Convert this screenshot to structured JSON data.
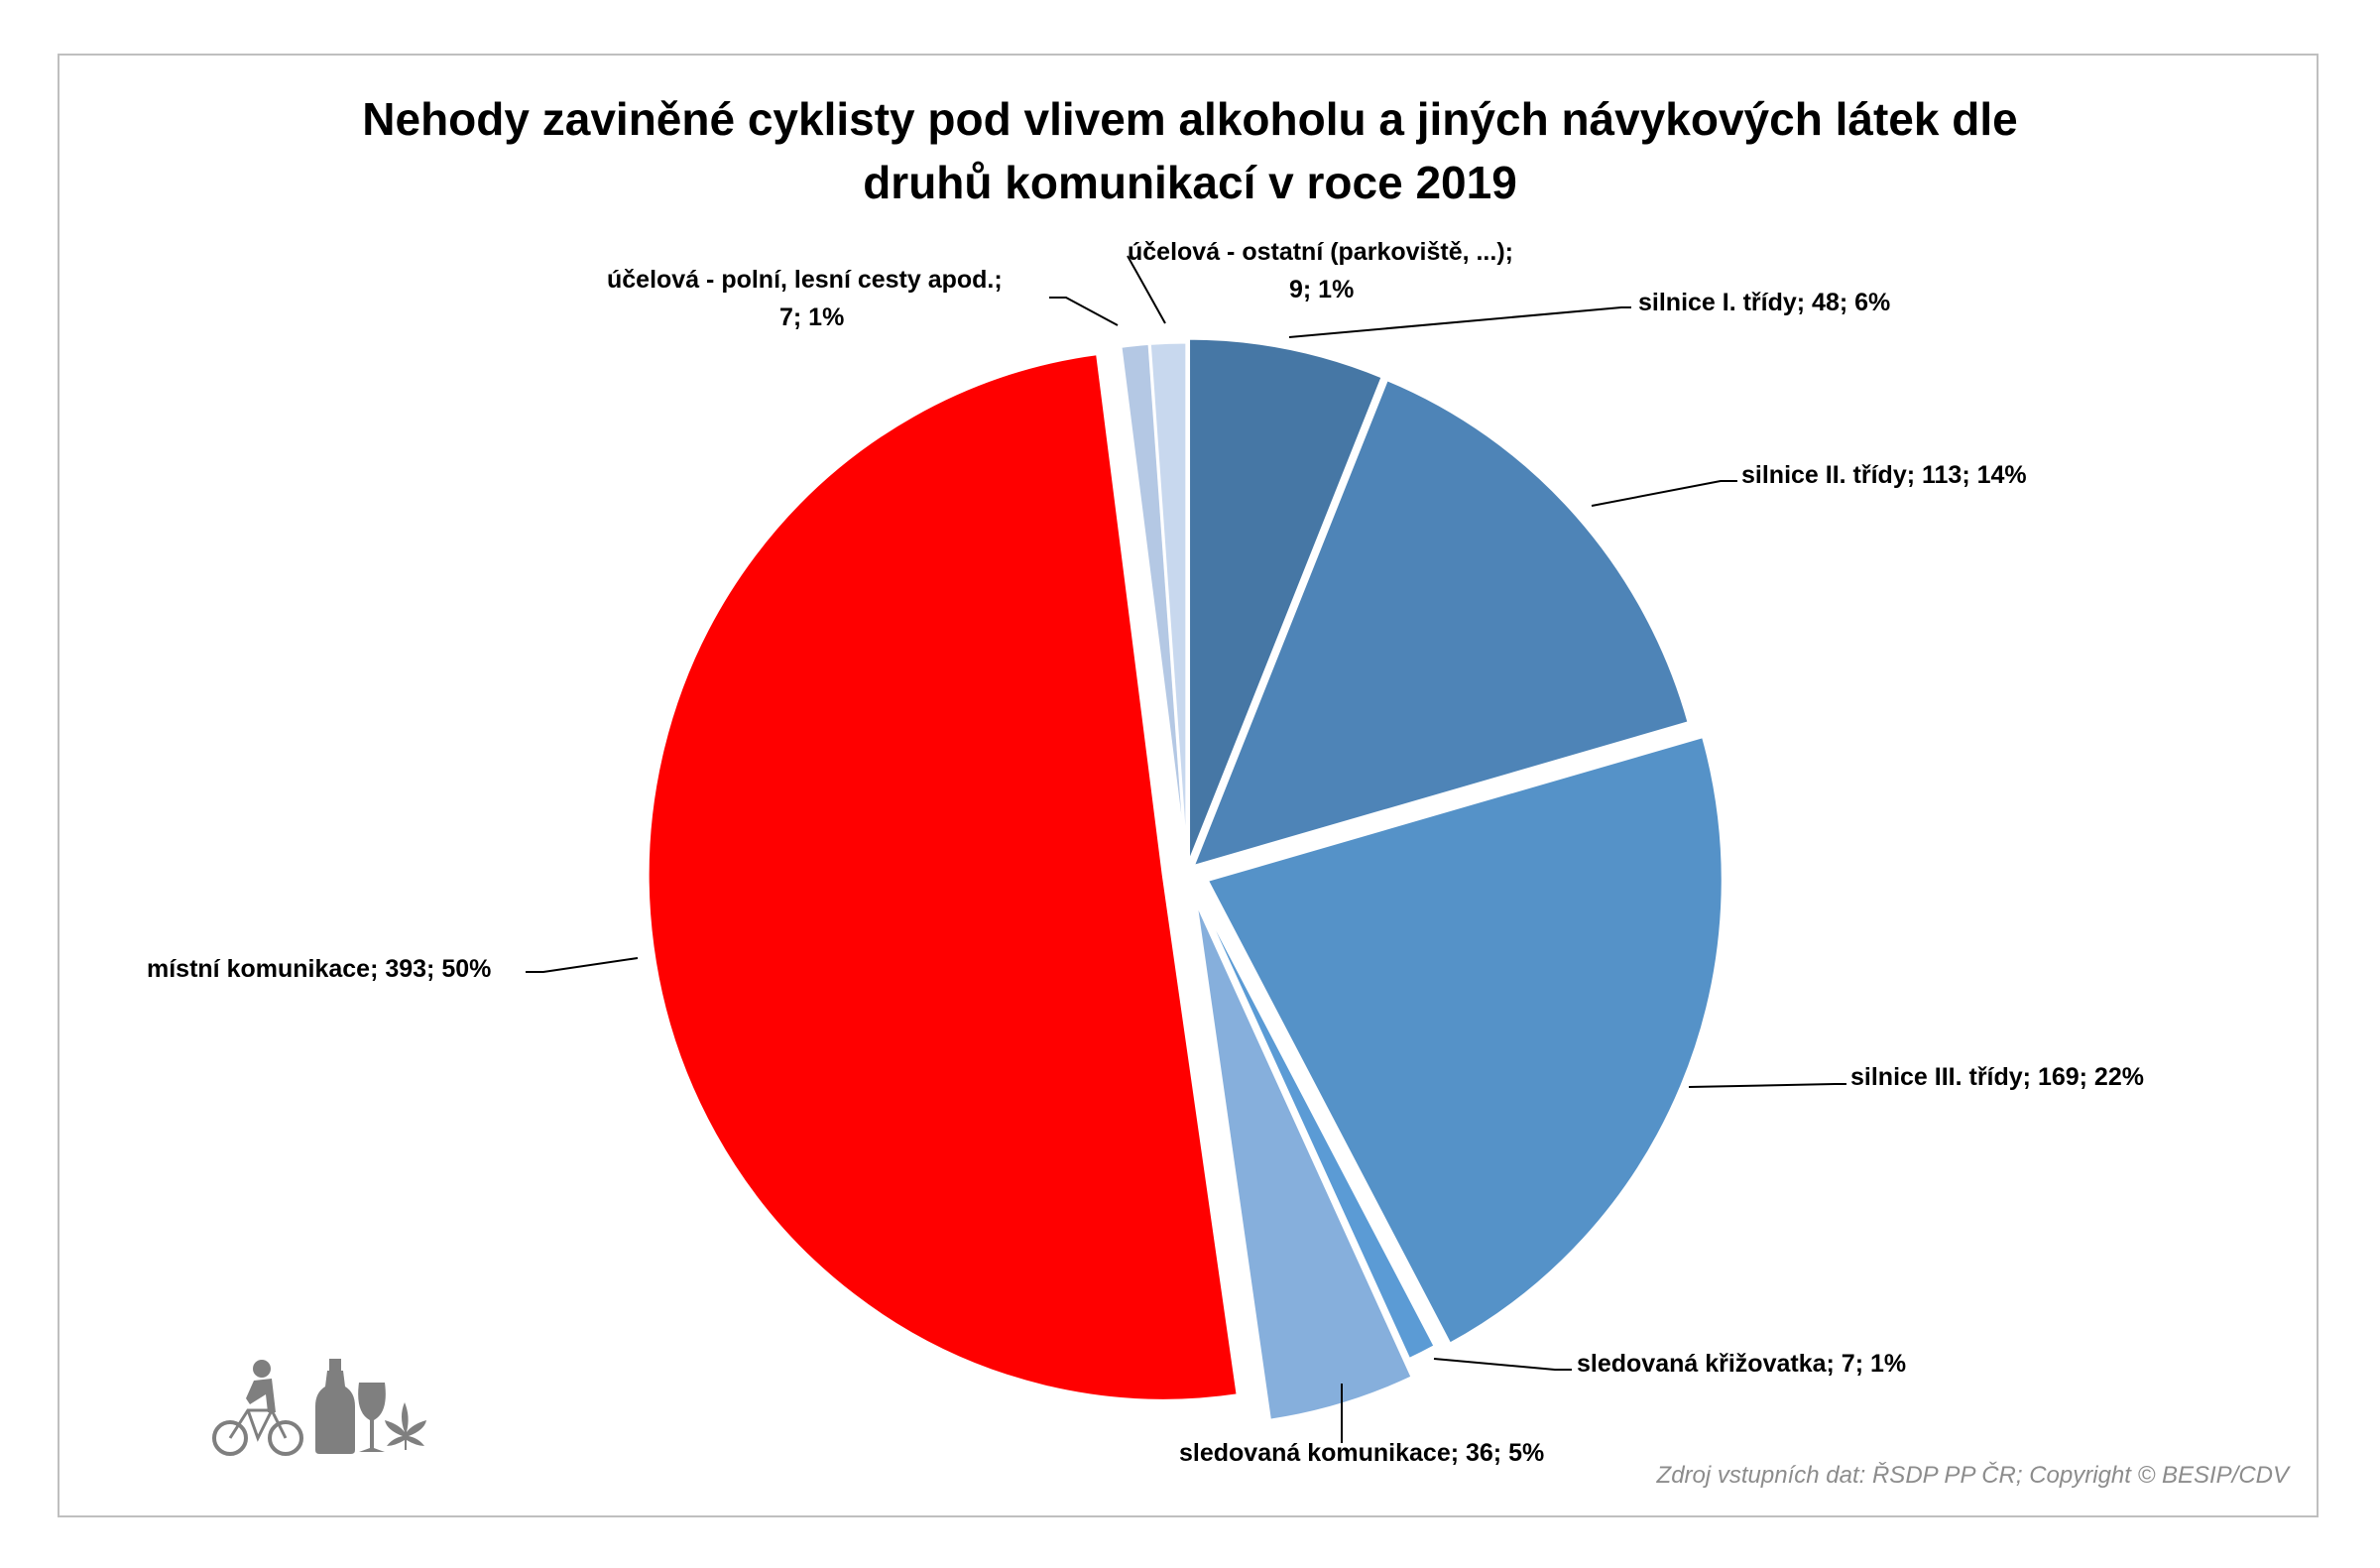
{
  "title": {
    "line1": "Nehody zaviněné cyklisty pod vlivem alkoholu a jiných návykových látek dle",
    "line2": "druhů komunikací v roce 2019"
  },
  "source": "Zdroj vstupních dat: ŘSDP PP ČR; Copyright © BESIP/CDV",
  "icons": [
    "cyclist-icon",
    "bottle-icon",
    "wine-glass-icon",
    "cannabis-leaf-icon"
  ],
  "labels": {
    "silnice1": "silnice I. třídy; 48; 6%",
    "silnice2": "silnice II. třídy; 113;  14%",
    "silnice3": "silnice III. třídy; 169;  22%",
    "krizovatka": "sledovaná křižovatka; 7; 1%",
    "sledkom": "sledovaná komunikace; 36; 5%",
    "mistni": "místní komunikace;  393;  50%",
    "polni_l1": "účelová - polní, lesní cesty apod.;",
    "polni_l2": "7; 1%",
    "ostatni_l1": "účelová - ostatní (parkoviště, ...);",
    "ostatni_l2": "9; 1%"
  },
  "chart_data": {
    "type": "pie",
    "title": "Nehody zaviněné cyklisty pod vlivem alkoholu a jiných návykových látek dle druhů komunikací v roce 2019",
    "categories": [
      "silnice I. třídy",
      "silnice II. třídy",
      "silnice III. třídy",
      "sledovaná křižovatka",
      "sledovaná komunikace",
      "místní komunikace",
      "účelová - polní, lesní cesty apod.",
      "účelová - ostatní (parkoviště, ...)"
    ],
    "values": [
      48,
      113,
      169,
      7,
      36,
      393,
      7,
      9
    ],
    "percentages": [
      6,
      14,
      22,
      1,
      5,
      50,
      1,
      1
    ],
    "colors": [
      "#4677a5",
      "#4e84b7",
      "#5592c8",
      "#5b9bd5",
      "#86afdc",
      "#ff0000",
      "#b4c8e4",
      "#c8d8ee"
    ],
    "start_angle_deg": 0,
    "direction": "clockwise",
    "exploded": true,
    "legend": "none",
    "data_labels": "category; value; percent"
  }
}
